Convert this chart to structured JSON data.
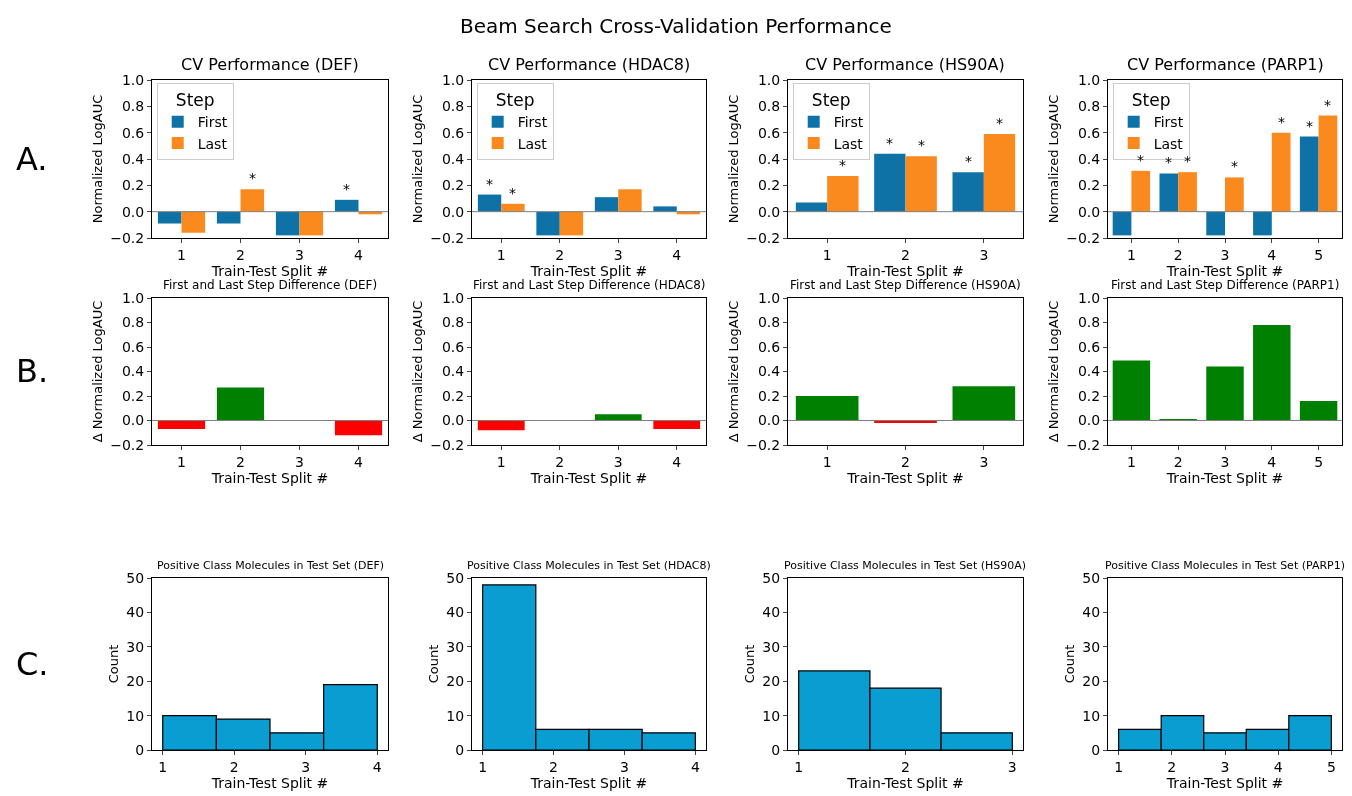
{
  "chart_data": [
    {
      "type": "bar",
      "title": "CV Performance (DEF)",
      "categories": [
        "1",
        "2",
        "3",
        "4"
      ],
      "series": [
        {
          "name": "First",
          "color": "#0f72a6",
          "values": [
            -0.09,
            -0.09,
            -0.18,
            0.09
          ]
        },
        {
          "name": "Last",
          "color": "#fb8a1e",
          "values": [
            -0.16,
            0.17,
            -0.18,
            -0.02
          ]
        }
      ],
      "xlabel": "Train-Test Split #",
      "ylabel": "Normalized LogAUC",
      "ylim": [
        -0.2,
        1.0
      ],
      "yticks": [
        {
          "value": -0.2,
          "label": "−0.2"
        },
        {
          "value": 0,
          "label": "0.0"
        },
        {
          "value": 0.2,
          "label": "0.2"
        },
        {
          "value": 0.4,
          "label": "0.4"
        },
        {
          "value": 0.6,
          "label": "0.6"
        },
        {
          "value": 0.8,
          "label": "0.8"
        },
        {
          "value": 1.0,
          "label": "1.0"
        }
      ],
      "legend": "top left",
      "legend_title": "Step",
      "ref_lines": [
        {
          "axis": "y",
          "value": 0,
          "color": "#808080"
        }
      ],
      "annotations": [
        "Beam Search Cross-Validation Performance",
        "A.",
        {
          "text": "*",
          "x": "2",
          "y": 0.17
        },
        {
          "text": "*",
          "x": "4",
          "y": 0.09
        }
      ]
    },
    {
      "type": "bar",
      "title": "CV Performance (HDAC8)",
      "categories": [
        "1",
        "2",
        "3",
        "4"
      ],
      "series": [
        {
          "name": "First",
          "color": "#0f72a6",
          "values": [
            0.13,
            -0.18,
            0.11,
            0.04
          ]
        },
        {
          "name": "Last",
          "color": "#fb8a1e",
          "values": [
            0.06,
            -0.18,
            0.17,
            -0.02
          ]
        }
      ],
      "xlabel": "Train-Test Split #",
      "ylabel": "Normalized LogAUC",
      "ylim": [
        -0.2,
        1.0
      ],
      "yticks": [
        {
          "value": -0.2,
          "label": "−0.2"
        },
        {
          "value": 0,
          "label": "0.0"
        },
        {
          "value": 0.2,
          "label": "0.2"
        },
        {
          "value": 0.4,
          "label": "0.4"
        },
        {
          "value": 0.6,
          "label": "0.6"
        },
        {
          "value": 0.8,
          "label": "0.8"
        },
        {
          "value": 1.0,
          "label": "1.0"
        }
      ],
      "legend": "top left",
      "legend_title": "Step",
      "ref_lines": [
        {
          "axis": "y",
          "value": 0,
          "color": "#808080"
        }
      ],
      "annotations": [
        {
          "text": "*",
          "x": "1",
          "y": 0.13
        },
        {
          "text": "*",
          "x": "1",
          "y": 0.06
        }
      ]
    },
    {
      "type": "bar",
      "title": "CV Performance (HS90A)",
      "categories": [
        "1",
        "2",
        "3"
      ],
      "series": [
        {
          "name": "First",
          "color": "#0f72a6",
          "values": [
            0.07,
            0.44,
            0.3
          ]
        },
        {
          "name": "Last",
          "color": "#fb8a1e",
          "values": [
            0.27,
            0.42,
            0.59
          ]
        }
      ],
      "xlabel": "Train-Test Split #",
      "ylabel": "Normalized LogAUC",
      "ylim": [
        -0.2,
        1.0
      ],
      "yticks": [
        {
          "value": -0.2,
          "label": "−0.2"
        },
        {
          "value": 0,
          "label": "0.0"
        },
        {
          "value": 0.2,
          "label": "0.2"
        },
        {
          "value": 0.4,
          "label": "0.4"
        },
        {
          "value": 0.6,
          "label": "0.6"
        },
        {
          "value": 0.8,
          "label": "0.8"
        },
        {
          "value": 1.0,
          "label": "1.0"
        }
      ],
      "legend": "top left",
      "legend_title": "Step",
      "ref_lines": [
        {
          "axis": "y",
          "value": 0,
          "color": "#808080"
        }
      ],
      "annotations": [
        {
          "text": "*",
          "x": "1",
          "y": 0.27
        },
        {
          "text": "*",
          "x": "2",
          "y": 0.44
        },
        {
          "text": "*",
          "x": "2",
          "y": 0.42
        },
        {
          "text": "*",
          "x": "3",
          "y": 0.3
        },
        {
          "text": "*",
          "x": "3",
          "y": 0.59
        }
      ]
    },
    {
      "type": "bar",
      "title": "CV Performance (PARP1)",
      "categories": [
        "1",
        "2",
        "3",
        "4",
        "5"
      ],
      "series": [
        {
          "name": "First",
          "color": "#0f72a6",
          "values": [
            -0.18,
            0.29,
            -0.18,
            -0.18,
            0.57
          ]
        },
        {
          "name": "Last",
          "color": "#fb8a1e",
          "values": [
            0.31,
            0.3,
            0.26,
            0.6,
            0.73
          ]
        }
      ],
      "xlabel": "Train-Test Split #",
      "ylabel": "Normalized LogAUC",
      "ylim": [
        -0.2,
        1.0
      ],
      "yticks": [
        {
          "value": -0.2,
          "label": "−0.2"
        },
        {
          "value": 0,
          "label": "0.0"
        },
        {
          "value": 0.2,
          "label": "0.2"
        },
        {
          "value": 0.4,
          "label": "0.4"
        },
        {
          "value": 0.6,
          "label": "0.6"
        },
        {
          "value": 0.8,
          "label": "0.8"
        },
        {
          "value": 1.0,
          "label": "1.0"
        }
      ],
      "legend": "top left",
      "legend_title": "Step",
      "ref_lines": [
        {
          "axis": "y",
          "value": 0,
          "color": "#808080"
        }
      ],
      "annotations": [
        {
          "text": "*",
          "x": "1",
          "y": 0.31
        },
        {
          "text": "*",
          "x": "2",
          "y": 0.29
        },
        {
          "text": "*",
          "x": "2",
          "y": 0.3
        },
        {
          "text": "*",
          "x": "3",
          "y": 0.26
        },
        {
          "text": "*",
          "x": "4",
          "y": 0.6
        },
        {
          "text": "*",
          "x": "5",
          "y": 0.57
        },
        {
          "text": "*",
          "x": "5",
          "y": 0.73
        }
      ]
    },
    {
      "type": "bar",
      "title": "First and Last Step Difference (DEF)",
      "categories": [
        "1",
        "2",
        "3",
        "4"
      ],
      "values": [
        -0.07,
        0.27,
        0,
        -0.12
      ],
      "colors": [
        "#ff0000",
        "#008000",
        "#008000",
        "#ff0000"
      ],
      "xlabel": "Train-Test Split #",
      "ylabel": "Δ Normalized LogAUC",
      "ylim": [
        -0.2,
        1.0
      ],
      "yticks": [
        {
          "value": -0.2,
          "label": "−0.2"
        },
        {
          "value": 0,
          "label": "0.0"
        },
        {
          "value": 0.2,
          "label": "0.2"
        },
        {
          "value": 0.4,
          "label": "0.4"
        },
        {
          "value": 0.6,
          "label": "0.6"
        },
        {
          "value": 0.8,
          "label": "0.8"
        },
        {
          "value": 1.0,
          "label": "1.0"
        }
      ],
      "ref_lines": [
        {
          "axis": "y",
          "value": 0,
          "color": "#808080"
        }
      ],
      "annotations": [
        "B."
      ]
    },
    {
      "type": "bar",
      "title": "First and Last Step Difference (HDAC8)",
      "categories": [
        "1",
        "2",
        "3",
        "4"
      ],
      "values": [
        -0.08,
        0,
        0.05,
        -0.07
      ],
      "colors": [
        "#ff0000",
        "#008000",
        "#008000",
        "#ff0000"
      ],
      "xlabel": "Train-Test Split #",
      "ylabel": "Δ Normalized LogAUC",
      "ylim": [
        -0.2,
        1.0
      ],
      "yticks": [
        {
          "value": -0.2,
          "label": "−0.2"
        },
        {
          "value": 0,
          "label": "0.0"
        },
        {
          "value": 0.2,
          "label": "0.2"
        },
        {
          "value": 0.4,
          "label": "0.4"
        },
        {
          "value": 0.6,
          "label": "0.6"
        },
        {
          "value": 0.8,
          "label": "0.8"
        },
        {
          "value": 1.0,
          "label": "1.0"
        }
      ],
      "ref_lines": [
        {
          "axis": "y",
          "value": 0,
          "color": "#808080"
        }
      ]
    },
    {
      "type": "bar",
      "title": "First and Last Step Difference (HS90A)",
      "categories": [
        "1",
        "2",
        "3"
      ],
      "values": [
        0.2,
        -0.02,
        0.28
      ],
      "colors": [
        "#008000",
        "#ff0000",
        "#008000"
      ],
      "xlabel": "Train-Test Split #",
      "ylabel": "Δ Normalized LogAUC",
      "ylim": [
        -0.2,
        1.0
      ],
      "yticks": [
        {
          "value": -0.2,
          "label": "−0.2"
        },
        {
          "value": 0,
          "label": "0.0"
        },
        {
          "value": 0.2,
          "label": "0.2"
        },
        {
          "value": 0.4,
          "label": "0.4"
        },
        {
          "value": 0.6,
          "label": "0.6"
        },
        {
          "value": 0.8,
          "label": "0.8"
        },
        {
          "value": 1.0,
          "label": "1.0"
        }
      ],
      "ref_lines": [
        {
          "axis": "y",
          "value": 0,
          "color": "#808080"
        }
      ]
    },
    {
      "type": "bar",
      "title": "First and Last Step Difference (PARP1)",
      "categories": [
        "1",
        "2",
        "3",
        "4",
        "5"
      ],
      "values": [
        0.49,
        0.01,
        0.44,
        0.78,
        0.16
      ],
      "colors": [
        "#008000",
        "#008000",
        "#008000",
        "#008000",
        "#008000"
      ],
      "xlabel": "Train-Test Split #",
      "ylabel": "Δ Normalized LogAUC",
      "ylim": [
        -0.2,
        1.0
      ],
      "yticks": [
        {
          "value": -0.2,
          "label": "−0.2"
        },
        {
          "value": 0,
          "label": "0.0"
        },
        {
          "value": 0.2,
          "label": "0.2"
        },
        {
          "value": 0.4,
          "label": "0.4"
        },
        {
          "value": 0.6,
          "label": "0.6"
        },
        {
          "value": 0.8,
          "label": "0.8"
        },
        {
          "value": 1.0,
          "label": "1.0"
        }
      ],
      "ref_lines": [
        {
          "axis": "y",
          "value": 0,
          "color": "#808080"
        }
      ]
    },
    {
      "type": "histogram",
      "title": "Positive Class Molecules in Test Set (DEF)",
      "bins": [
        1,
        1.75,
        2.5,
        3.25,
        4
      ],
      "values": [
        10,
        9,
        5,
        19
      ],
      "color": "#0a9dd2",
      "xlabel": "Train-Test Split #",
      "ylabel": "Count",
      "xlim": [
        0.85,
        4.15
      ],
      "xticks": [
        1,
        2,
        3,
        4
      ],
      "ylim": [
        0,
        50
      ],
      "yticks": [
        0,
        10,
        20,
        30,
        40,
        50
      ],
      "annotations": [
        "C."
      ]
    },
    {
      "type": "histogram",
      "title": "Positive Class Molecules in Test Set (HDAC8)",
      "bins": [
        1,
        1.75,
        2.5,
        3.25,
        4
      ],
      "values": [
        48,
        6,
        6,
        5
      ],
      "color": "#0a9dd2",
      "xlabel": "Train-Test Split #",
      "ylabel": "Count",
      "xlim": [
        0.85,
        4.15
      ],
      "xticks": [
        1,
        2,
        3,
        4
      ],
      "ylim": [
        0,
        50
      ],
      "yticks": [
        0,
        10,
        20,
        30,
        40,
        50
      ]
    },
    {
      "type": "histogram",
      "title": "Positive Class Molecules in Test Set (HS90A)",
      "bins": [
        1,
        1.667,
        2.333,
        3
      ],
      "values": [
        23,
        18,
        5
      ],
      "color": "#0a9dd2",
      "xlabel": "Train-Test Split #",
      "ylabel": "Count",
      "xlim": [
        0.9,
        3.1
      ],
      "xticks": [
        1,
        2,
        3
      ],
      "ylim": [
        0,
        50
      ],
      "yticks": [
        0,
        10,
        20,
        30,
        40,
        50
      ]
    },
    {
      "type": "histogram",
      "title": "Positive Class Molecules in Test Set (PARP1)",
      "bins": [
        1,
        1.8,
        2.6,
        3.4,
        4.2,
        5
      ],
      "values": [
        6,
        10,
        5,
        6,
        10
      ],
      "color": "#0a9dd2",
      "xlabel": "Train-Test Split #",
      "ylabel": "Count",
      "xlim": [
        0.8,
        5.2
      ],
      "xticks": [
        1,
        2,
        3,
        4,
        5
      ],
      "ylim": [
        0,
        50
      ],
      "yticks": [
        0,
        10,
        20,
        30,
        40,
        50
      ]
    }
  ]
}
